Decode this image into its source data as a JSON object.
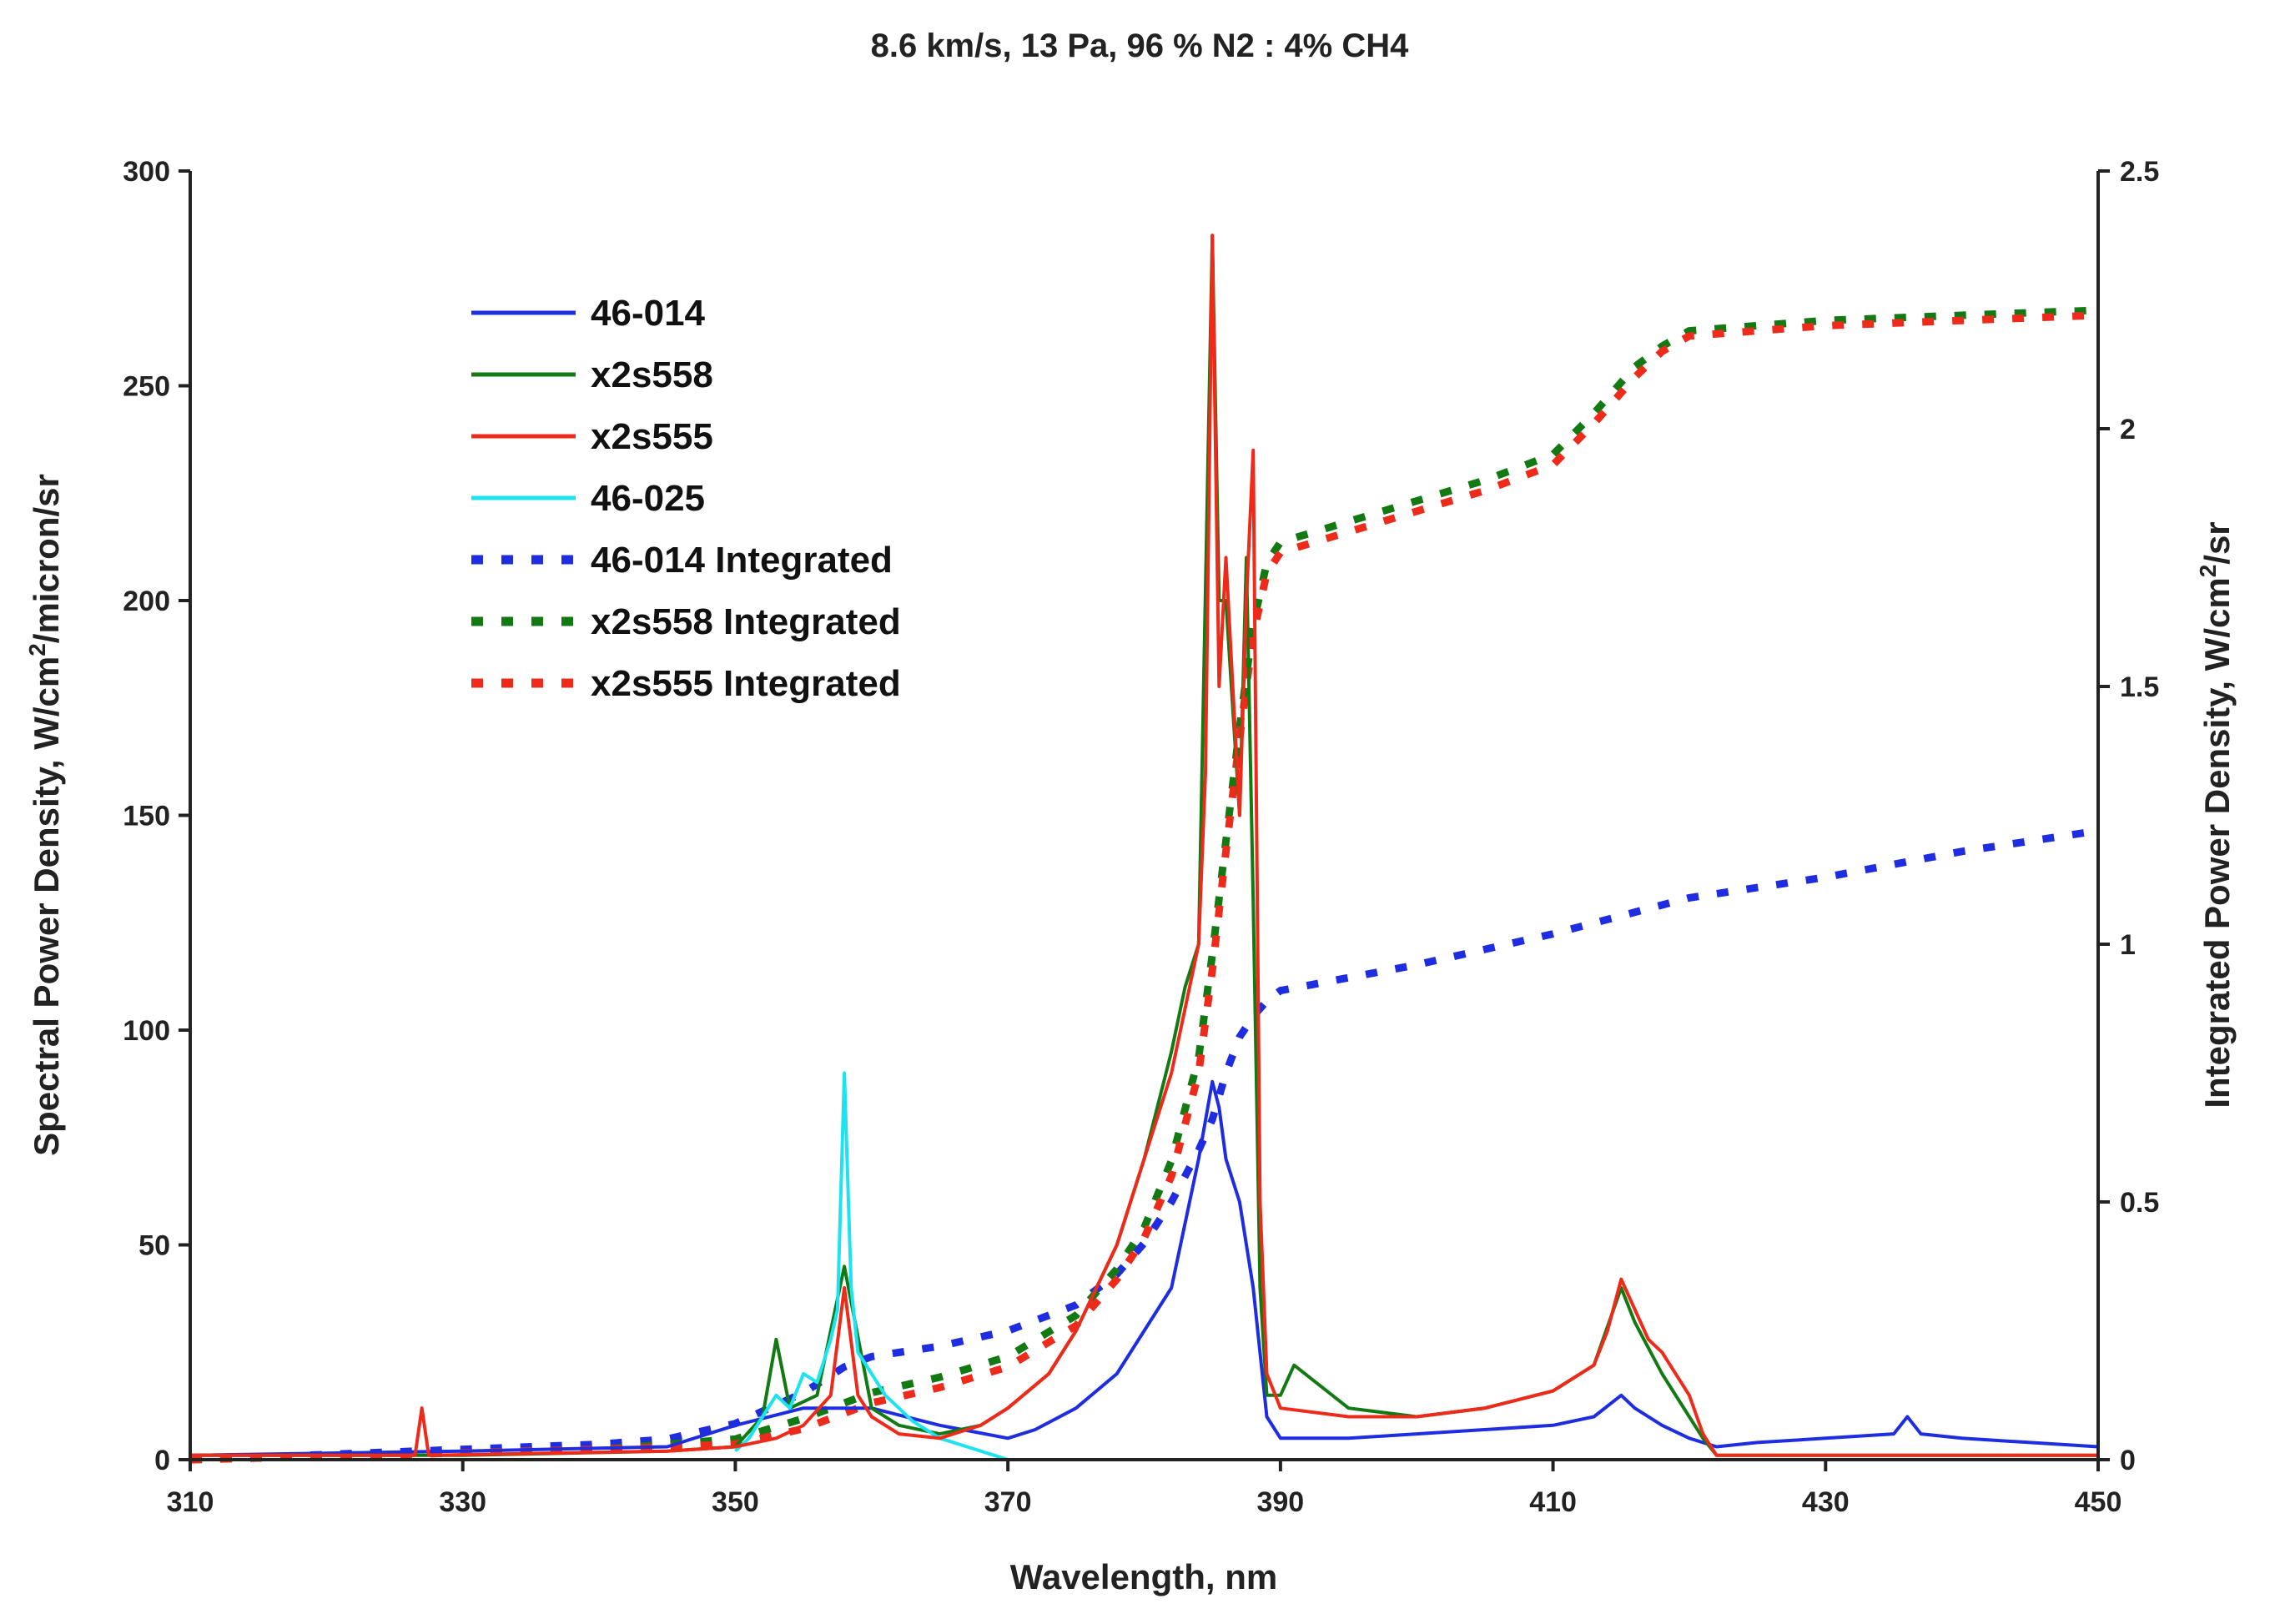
{
  "chart_data": {
    "type": "line",
    "title": "8.6 km/s, 13 Pa, 96 % N2 : 4% CH4",
    "xlabel": "Wavelength, nm",
    "ylabel": "Spectral Power Density, W/cm",
    "ylabel_sup": "2",
    "ylabel_tail": "/micron/sr",
    "y2label": "Integrated Power Density, W/cm",
    "y2label_sup": "2",
    "y2label_tail": "/sr",
    "xlim": [
      310,
      450
    ],
    "ylim": [
      0,
      300
    ],
    "y2lim": [
      0,
      2.5
    ],
    "xticks": [
      310,
      330,
      350,
      370,
      390,
      410,
      430,
      450
    ],
    "yticks": [
      0,
      50,
      100,
      150,
      200,
      250,
      300
    ],
    "y2ticks": [
      "0",
      "0.5",
      "1",
      "1.5",
      "2",
      "2.5"
    ],
    "y2tick_values": [
      0,
      0.5,
      1,
      1.5,
      2,
      2.5
    ],
    "legend_position": "upper-left",
    "grid": false,
    "series": [
      {
        "name": "46-014",
        "color": "#1f2de0",
        "style": "solid",
        "axis": "left",
        "x": [
          310,
          330,
          345,
          350,
          355,
          360,
          365,
          370,
          372,
          375,
          378,
          380,
          382,
          383,
          384,
          385,
          385.5,
          386,
          387,
          388,
          389,
          390,
          395,
          400,
          405,
          410,
          413,
          415,
          416,
          418,
          420,
          422,
          425,
          430,
          435,
          436,
          437,
          440,
          445,
          450
        ],
        "y": [
          1,
          2,
          3,
          8,
          12,
          12,
          8,
          5,
          7,
          12,
          20,
          30,
          40,
          55,
          70,
          88,
          82,
          70,
          60,
          40,
          10,
          5,
          5,
          6,
          7,
          8,
          10,
          15,
          12,
          8,
          5,
          3,
          4,
          5,
          6,
          10,
          6,
          5,
          4,
          3
        ]
      },
      {
        "name": "x2s558",
        "color": "#137a13",
        "style": "solid",
        "axis": "left",
        "x": [
          310,
          330,
          345,
          350,
          352,
          353,
          354,
          356,
          358,
          360,
          362,
          365,
          368,
          370,
          373,
          375,
          378,
          380,
          382,
          383,
          384,
          385,
          385.5,
          386,
          387,
          387.5,
          388,
          388.5,
          389,
          390,
          391,
          395,
          400,
          405,
          410,
          413,
          415,
          416,
          418,
          420,
          421,
          422,
          425,
          430,
          440,
          450
        ],
        "y": [
          1,
          1,
          2,
          3,
          10,
          28,
          12,
          15,
          45,
          12,
          8,
          6,
          8,
          12,
          20,
          30,
          50,
          70,
          95,
          110,
          120,
          285,
          200,
          200,
          150,
          210,
          130,
          40,
          15,
          15,
          22,
          12,
          10,
          12,
          16,
          22,
          40,
          32,
          20,
          10,
          5,
          1,
          1,
          1,
          1,
          1
        ]
      },
      {
        "name": "x2s555",
        "color": "#ee2a1b",
        "style": "solid",
        "axis": "left",
        "x": [
          310,
          326.5,
          327,
          327.5,
          345,
          350,
          353,
          355,
          357,
          358,
          359,
          360,
          362,
          365,
          368,
          370,
          373,
          375,
          378,
          380,
          382,
          383,
          384,
          384.5,
          385,
          385.5,
          386,
          387,
          387.5,
          388,
          388.5,
          389,
          390,
          395,
          400,
          405,
          410,
          413,
          414,
          415,
          416,
          417,
          418,
          420,
          421,
          422,
          425,
          430,
          440,
          450
        ],
        "y": [
          1,
          1,
          12,
          1,
          2,
          3,
          5,
          8,
          15,
          40,
          15,
          10,
          6,
          5,
          8,
          12,
          20,
          30,
          50,
          70,
          90,
          105,
          120,
          160,
          285,
          180,
          210,
          150,
          200,
          235,
          60,
          20,
          12,
          10,
          10,
          12,
          16,
          22,
          30,
          42,
          35,
          28,
          25,
          15,
          6,
          1,
          1,
          1,
          1,
          1
        ]
      },
      {
        "name": "46-025",
        "color": "#1de3f0",
        "style": "solid",
        "axis": "left",
        "x": [
          350,
          351,
          352,
          353,
          354,
          355,
          356,
          357,
          357.5,
          358,
          358.5,
          359,
          360,
          361,
          362,
          363,
          364,
          365,
          366,
          367,
          368,
          369,
          370
        ],
        "y": [
          2,
          5,
          10,
          15,
          12,
          20,
          18,
          28,
          35,
          90,
          40,
          25,
          20,
          15,
          12,
          9,
          7,
          5,
          4,
          3,
          2,
          1,
          0
        ]
      },
      {
        "name": "46-014 Integrated",
        "color": "#1f2de0",
        "style": "dotted",
        "axis": "right",
        "x": [
          310,
          330,
          340,
          345,
          350,
          355,
          358,
          360,
          365,
          370,
          375,
          378,
          380,
          382,
          384,
          385,
          386,
          387,
          388,
          389,
          390,
          400,
          410,
          420,
          430,
          440,
          450
        ],
        "y": [
          0.0,
          0.02,
          0.03,
          0.04,
          0.07,
          0.13,
          0.18,
          0.2,
          0.22,
          0.25,
          0.3,
          0.36,
          0.42,
          0.5,
          0.6,
          0.66,
          0.75,
          0.82,
          0.86,
          0.89,
          0.91,
          0.96,
          1.02,
          1.09,
          1.13,
          1.18,
          1.22
        ]
      },
      {
        "name": "x2s558 Integrated",
        "color": "#137a13",
        "style": "dotted",
        "axis": "right",
        "x": [
          310,
          340,
          350,
          355,
          360,
          365,
          370,
          375,
          378,
          380,
          382,
          384,
          385,
          386,
          387,
          388,
          389,
          390,
          400,
          405,
          410,
          413,
          416,
          418,
          420,
          425,
          430,
          440,
          450
        ],
        "y": [
          0.0,
          0.02,
          0.04,
          0.08,
          0.13,
          0.16,
          0.2,
          0.28,
          0.37,
          0.45,
          0.58,
          0.78,
          0.98,
          1.2,
          1.42,
          1.62,
          1.74,
          1.78,
          1.86,
          1.9,
          1.95,
          2.03,
          2.12,
          2.16,
          2.19,
          2.2,
          2.21,
          2.22,
          2.23
        ]
      },
      {
        "name": "x2s555 Integrated",
        "color": "#ee2a1b",
        "style": "dotted",
        "axis": "right",
        "x": [
          310,
          340,
          350,
          355,
          360,
          365,
          370,
          375,
          378,
          380,
          382,
          384,
          385,
          386,
          387,
          388,
          389,
          390,
          400,
          405,
          410,
          413,
          416,
          418,
          420,
          425,
          430,
          440,
          450
        ],
        "y": [
          0.0,
          0.02,
          0.03,
          0.06,
          0.11,
          0.14,
          0.18,
          0.26,
          0.35,
          0.43,
          0.55,
          0.75,
          0.95,
          1.18,
          1.4,
          1.6,
          1.72,
          1.76,
          1.84,
          1.88,
          1.93,
          2.01,
          2.1,
          2.15,
          2.18,
          2.19,
          2.2,
          2.21,
          2.22
        ]
      }
    ]
  }
}
